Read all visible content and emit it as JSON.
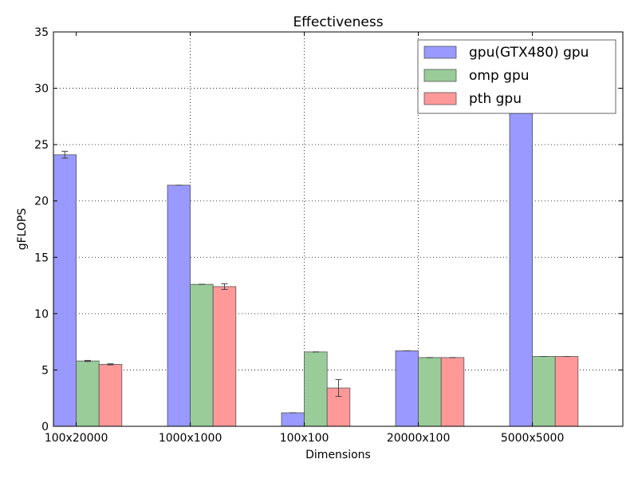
{
  "chart_data": {
    "type": "bar",
    "title": "Effectiveness",
    "xlabel": "Dimensions",
    "ylabel": "gFLOPS",
    "ylim": [
      0,
      35
    ],
    "yticks": [
      "0",
      "5",
      "10",
      "15",
      "20",
      "25",
      "30",
      "35"
    ],
    "categories": [
      "100x20000",
      "1000x1000",
      "100x100",
      "20000x100",
      "5000x5000"
    ],
    "grid": true,
    "legend_position": "top-right",
    "series": [
      {
        "name": "gpu(GTX480) gpu",
        "color": "#9999ff",
        "values": [
          24.1,
          21.4,
          1.2,
          6.7,
          31.2
        ],
        "errors": [
          0.3,
          0.0,
          0.0,
          0.0,
          0.2
        ]
      },
      {
        "name": "omp gpu",
        "color": "#99cc99",
        "values": [
          5.8,
          12.6,
          6.6,
          6.1,
          6.2
        ],
        "errors": [
          0.05,
          0.0,
          0.0,
          0.0,
          0.0
        ]
      },
      {
        "name": "pth gpu",
        "color": "#ff9999",
        "values": [
          5.5,
          12.4,
          3.4,
          6.1,
          6.2
        ],
        "errors": [
          0.05,
          0.25,
          0.75,
          0.0,
          0.0
        ]
      }
    ]
  }
}
